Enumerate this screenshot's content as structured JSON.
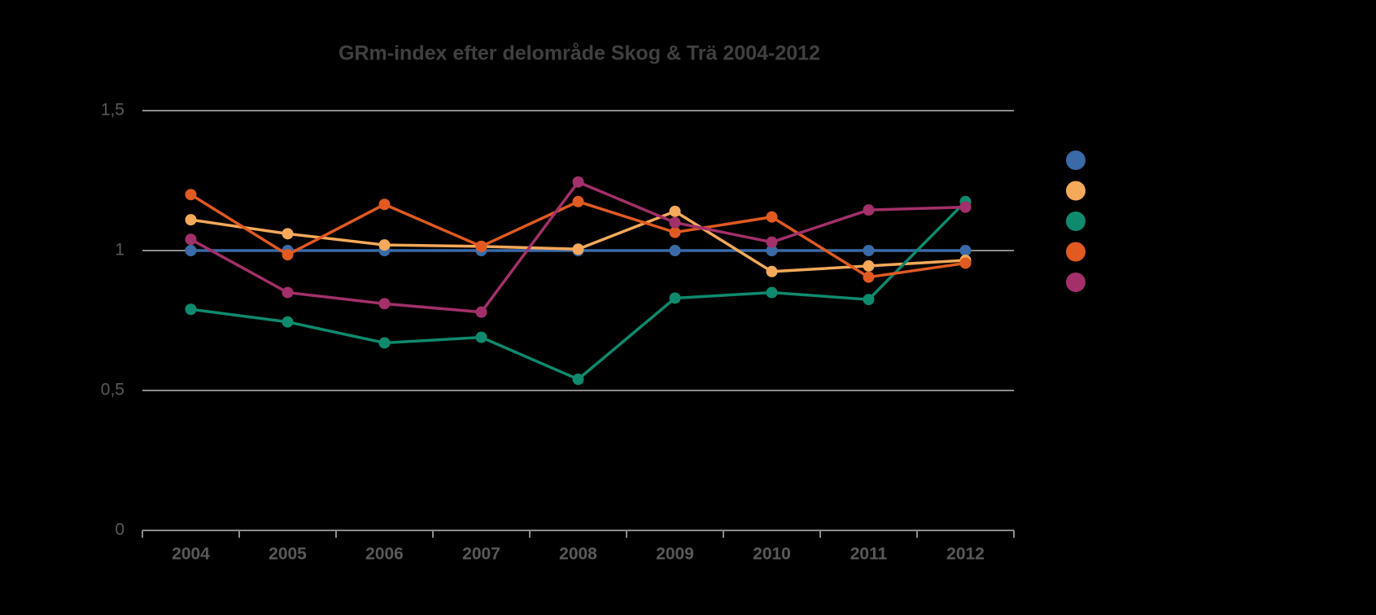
{
  "chart_data": {
    "type": "line",
    "title": "GRm-index efter delområde Skog & Trä 2004-2012",
    "categories": [
      "2004",
      "2005",
      "2006",
      "2007",
      "2008",
      "2009",
      "2010",
      "2011",
      "2012"
    ],
    "series": [
      {
        "color": "#3a6aa8",
        "values": [
          1,
          1,
          1,
          1,
          1,
          1,
          1,
          1,
          1
        ]
      },
      {
        "color": "#f5a95a",
        "values": [
          1.11,
          1.06,
          1.02,
          1.015,
          1.005,
          1.14,
          0.925,
          0.945,
          0.965
        ]
      },
      {
        "color": "#0f8a6e",
        "values": [
          0.79,
          0.745,
          0.67,
          0.69,
          0.54,
          0.83,
          0.85,
          0.825,
          1.175
        ]
      },
      {
        "color": "#e05a22",
        "values": [
          1.2,
          0.985,
          1.165,
          1.015,
          1.175,
          1.065,
          1.12,
          0.905,
          0.955
        ]
      },
      {
        "color": "#a3306a",
        "values": [
          1.04,
          0.85,
          0.81,
          0.78,
          1.245,
          1.1,
          1.03,
          1.145,
          1.155
        ]
      }
    ],
    "ylim": [
      0,
      1.5
    ],
    "yticks": [
      0,
      {
        "value": 0.5,
        "label": "0,5"
      },
      1,
      {
        "value": 1.5,
        "label": "1,5"
      }
    ],
    "grid": true
  }
}
